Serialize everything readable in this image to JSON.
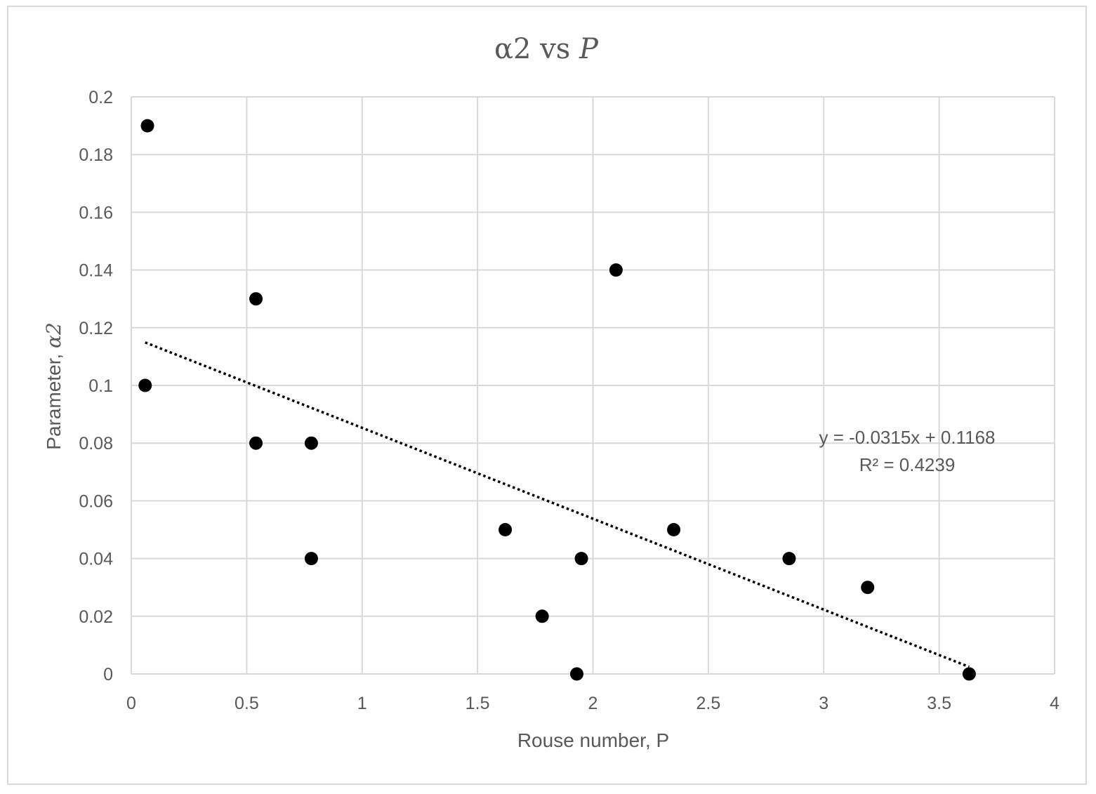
{
  "chart_data": {
    "type": "scatter",
    "title": {
      "main": "α2 vs ",
      "variable": "P"
    },
    "xlabel": "Rouse number, P",
    "ylabel": {
      "prefix": "Parameter, ",
      "symbol": "α2"
    },
    "xlim": [
      0,
      4
    ],
    "ylim": [
      0,
      0.2
    ],
    "x_ticks": [
      "0",
      "0.5",
      "1",
      "1.5",
      "2",
      "2.5",
      "3",
      "3.5",
      "4"
    ],
    "y_ticks": [
      "0",
      "0.02",
      "0.04",
      "0.06",
      "0.08",
      "0.1",
      "0.12",
      "0.14",
      "0.16",
      "0.18",
      "0.2"
    ],
    "x_tick_values": [
      0,
      0.5,
      1,
      1.5,
      2,
      2.5,
      3,
      3.5,
      4
    ],
    "y_tick_values": [
      0,
      0.02,
      0.04,
      0.06,
      0.08,
      0.1,
      0.12,
      0.14,
      0.16,
      0.18,
      0.2
    ],
    "grid": true,
    "series": [
      {
        "marker_color": "#000000",
        "points": [
          {
            "x": 0.07,
            "y": 0.19
          },
          {
            "x": 0.06,
            "y": 0.1
          },
          {
            "x": 0.54,
            "y": 0.13
          },
          {
            "x": 0.54,
            "y": 0.08
          },
          {
            "x": 0.78,
            "y": 0.08
          },
          {
            "x": 0.78,
            "y": 0.04
          },
          {
            "x": 1.62,
            "y": 0.05
          },
          {
            "x": 1.78,
            "y": 0.02
          },
          {
            "x": 1.93,
            "y": 0.0
          },
          {
            "x": 1.95,
            "y": 0.04
          },
          {
            "x": 2.1,
            "y": 0.14
          },
          {
            "x": 2.35,
            "y": 0.05
          },
          {
            "x": 2.85,
            "y": 0.04
          },
          {
            "x": 3.19,
            "y": 0.03
          },
          {
            "x": 3.63,
            "y": 0.0
          }
        ]
      }
    ],
    "trendline": {
      "type": "linear",
      "style": "dotted",
      "color": "#000000",
      "slope": -0.0315,
      "intercept": 0.1168,
      "x_range": [
        0.06,
        3.63
      ],
      "equation_label": "y = -0.0315x + 0.1168",
      "r2_label": "R² = 0.4239"
    },
    "colors": {
      "grid": "#d9d9d9",
      "text": "#595959",
      "border": "#d9d9d9"
    }
  }
}
